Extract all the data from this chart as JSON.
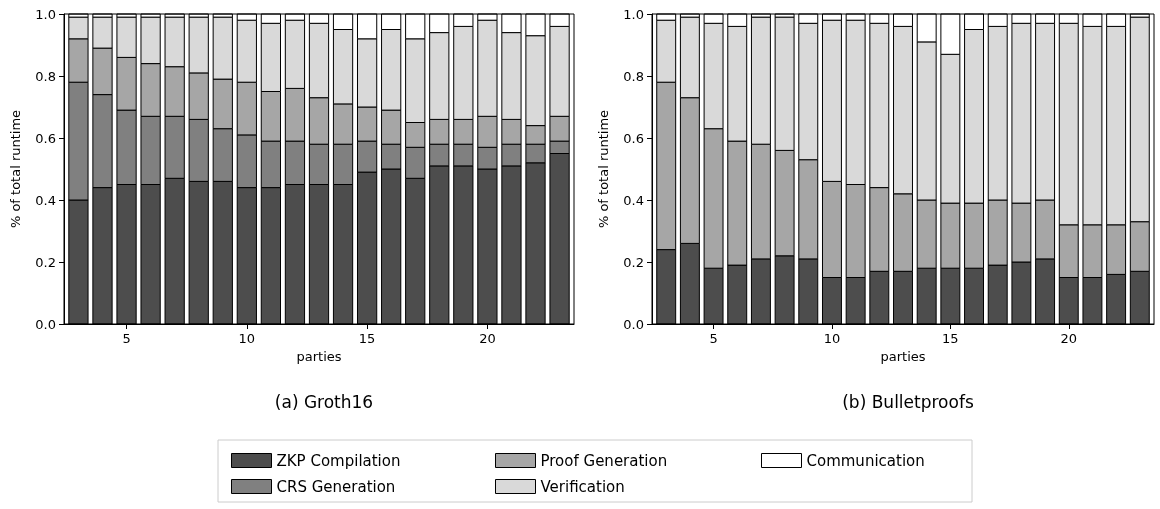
{
  "chart_data": [
    {
      "type": "bar",
      "title": "(a) Groth16",
      "xlabel": "parties",
      "ylabel": "% of total runtime",
      "stacked": true,
      "legend": "bottom",
      "grid": false,
      "x": [
        3,
        4,
        5,
        6,
        7,
        8,
        9,
        10,
        11,
        12,
        13,
        14,
        15,
        16,
        17,
        18,
        19,
        20,
        21,
        22,
        23
      ],
      "xlim": [
        2.4,
        23.6
      ],
      "xticks": [
        5,
        10,
        15,
        20
      ],
      "ylim": [
        0,
        1
      ],
      "yticks": [
        {
          "value": 0,
          "label": "0.0"
        },
        {
          "value": 0.2,
          "label": "0.2"
        },
        {
          "value": 0.4,
          "label": "0.4"
        },
        {
          "value": 0.6,
          "label": "0.6"
        },
        {
          "value": 0.8,
          "label": "0.8"
        },
        {
          "value": 1,
          "label": "1.0"
        }
      ],
      "series": [
        {
          "name": "ZKP Compilation",
          "color": "#4d4d4d",
          "values": [
            0.4,
            0.44,
            0.45,
            0.45,
            0.47,
            0.46,
            0.46,
            0.44,
            0.44,
            0.45,
            0.45,
            0.45,
            0.49,
            0.5,
            0.47,
            0.51,
            0.51,
            0.5,
            0.51,
            0.52,
            0.55
          ]
        },
        {
          "name": "CRS Generation",
          "color": "#808080",
          "values": [
            0.38,
            0.3,
            0.24,
            0.22,
            0.2,
            0.2,
            0.17,
            0.17,
            0.15,
            0.14,
            0.13,
            0.13,
            0.1,
            0.08,
            0.1,
            0.07,
            0.07,
            0.07,
            0.07,
            0.06,
            0.04
          ]
        },
        {
          "name": "Proof Generation",
          "color": "#a6a6a6",
          "values": [
            0.14,
            0.15,
            0.17,
            0.17,
            0.16,
            0.15,
            0.16,
            0.17,
            0.16,
            0.17,
            0.15,
            0.13,
            0.11,
            0.11,
            0.08,
            0.08,
            0.08,
            0.1,
            0.08,
            0.06,
            0.08
          ]
        },
        {
          "name": "Verification",
          "color": "#d9d9d9",
          "values": [
            0.07,
            0.1,
            0.13,
            0.15,
            0.16,
            0.18,
            0.2,
            0.2,
            0.22,
            0.22,
            0.24,
            0.24,
            0.22,
            0.26,
            0.27,
            0.28,
            0.3,
            0.31,
            0.28,
            0.29,
            0.29
          ]
        },
        {
          "name": "Communication",
          "color": "#ffffff",
          "values": [
            0.01,
            0.01,
            0.01,
            0.01,
            0.01,
            0.01,
            0.01,
            0.02,
            0.03,
            0.02,
            0.03,
            0.05,
            0.08,
            0.05,
            0.08,
            0.06,
            0.04,
            0.02,
            0.06,
            0.07,
            0.04
          ]
        }
      ]
    },
    {
      "type": "bar",
      "title": "(b) Bulletproofs",
      "xlabel": "parties",
      "ylabel": "% of total runtime",
      "stacked": true,
      "grid": false,
      "x": [
        3,
        4,
        5,
        6,
        7,
        8,
        9,
        10,
        11,
        12,
        13,
        14,
        15,
        16,
        17,
        18,
        19,
        20,
        21,
        22,
        23
      ],
      "xlim": [
        2.4,
        23.6
      ],
      "xticks": [
        5,
        10,
        15,
        20
      ],
      "ylim": [
        0,
        1
      ],
      "yticks": [
        {
          "value": 0,
          "label": "0.0"
        },
        {
          "value": 0.2,
          "label": "0.2"
        },
        {
          "value": 0.4,
          "label": "0.4"
        },
        {
          "value": 0.6,
          "label": "0.6"
        },
        {
          "value": 0.8,
          "label": "0.8"
        },
        {
          "value": 1,
          "label": "1.0"
        }
      ],
      "series": [
        {
          "color": "#4d4d4d",
          "values": [
            0.24,
            0.26,
            0.18,
            0.19,
            0.21,
            0.22,
            0.21,
            0.15,
            0.15,
            0.17,
            0.17,
            0.18,
            0.18,
            0.18,
            0.19,
            0.2,
            0.21,
            0.15,
            0.15,
            0.16,
            0.17
          ]
        },
        {
          "color": "#a6a6a6",
          "values": [
            0.54,
            0.47,
            0.45,
            0.4,
            0.37,
            0.34,
            0.32,
            0.31,
            0.3,
            0.27,
            0.25,
            0.22,
            0.21,
            0.21,
            0.21,
            0.19,
            0.19,
            0.17,
            0.17,
            0.16,
            0.16
          ]
        },
        {
          "color": "#d9d9d9",
          "values": [
            0.2,
            0.26,
            0.34,
            0.37,
            0.41,
            0.43,
            0.44,
            0.52,
            0.53,
            0.53,
            0.54,
            0.51,
            0.48,
            0.56,
            0.56,
            0.58,
            0.57,
            0.65,
            0.64,
            0.64,
            0.66
          ]
        },
        {
          "color": "#ffffff",
          "values": [
            0.02,
            0.01,
            0.03,
            0.04,
            0.01,
            0.01,
            0.03,
            0.02,
            0.02,
            0.03,
            0.04,
            0.09,
            0.13,
            0.05,
            0.04,
            0.03,
            0.03,
            0.03,
            0.04,
            0.04,
            0.01
          ]
        }
      ]
    }
  ]
}
